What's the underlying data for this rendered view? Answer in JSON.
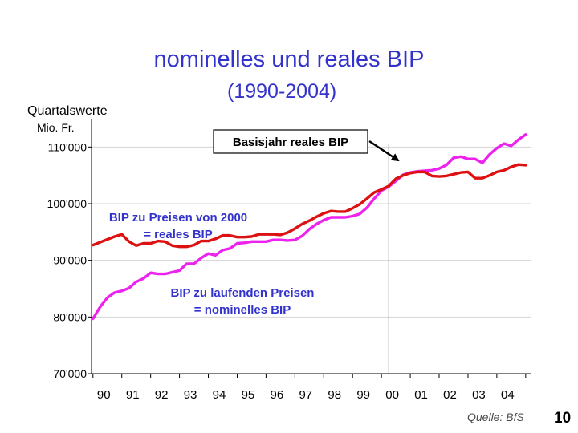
{
  "page": {
    "source": "Quelle: BfS",
    "page_number": "10"
  },
  "colors": {
    "nominal": "#ee22ee",
    "real": "#dd1111",
    "annotation": "#3333cc"
  },
  "chart_data": {
    "type": "line",
    "title": "nominelles und reales BIP",
    "subtitle": "(1990-2004)",
    "quarter_label": "Quartalswerte",
    "ylabel": "Mio. Fr.",
    "ylim": [
      70000,
      115000
    ],
    "yticks": [
      70000,
      80000,
      90000,
      100000,
      110000
    ],
    "ytick_labels": [
      "70'000",
      "80'000",
      "90'000",
      "100'000",
      "110'000"
    ],
    "xlim": [
      1989.7,
      2004.95
    ],
    "xticks": [
      1990,
      1991,
      1992,
      1993,
      1994,
      1995,
      1996,
      1997,
      1998,
      1999,
      2000,
      2001,
      2002,
      2003,
      2004
    ],
    "xtick_labels": [
      "90",
      "91",
      "92",
      "93",
      "94",
      "95",
      "96",
      "97",
      "98",
      "99",
      "00",
      "01",
      "02",
      "03",
      "04"
    ],
    "reference_line_x": 2000,
    "series": [
      {
        "name": "BIP zu laufenden Preisen = nominelles BIP",
        "key": "nominal",
        "x": [
          1989.75,
          1990,
          1990.25,
          1990.5,
          1990.75,
          1991,
          1991.25,
          1991.5,
          1991.75,
          1992,
          1992.25,
          1992.5,
          1992.75,
          1993,
          1993.25,
          1993.5,
          1993.75,
          1994,
          1994.25,
          1994.5,
          1994.75,
          1995,
          1995.25,
          1995.5,
          1995.75,
          1996,
          1996.25,
          1996.5,
          1996.75,
          1997,
          1997.25,
          1997.5,
          1997.75,
          1998,
          1998.25,
          1998.5,
          1998.75,
          1999,
          1999.25,
          1999.5,
          1999.75,
          2000,
          2000.25,
          2000.5,
          2000.75,
          2001,
          2001.25,
          2001.5,
          2001.75,
          2002,
          2002.25,
          2002.5,
          2002.75,
          2003,
          2003.25,
          2003.5,
          2003.75,
          2004,
          2004.25,
          2004.5,
          2004.75
        ],
        "values": [
          79700,
          81800,
          83400,
          84300,
          84600,
          85100,
          86200,
          86800,
          87800,
          87600,
          87600,
          87900,
          88200,
          89400,
          89400,
          90400,
          91200,
          90900,
          91800,
          92100,
          93000,
          93100,
          93300,
          93300,
          93300,
          93600,
          93600,
          93500,
          93600,
          94300,
          95500,
          96400,
          97100,
          97600,
          97600,
          97600,
          97800,
          98200,
          99300,
          100900,
          102300,
          103000,
          104000,
          105100,
          105500,
          105700,
          105800,
          105900,
          106200,
          106800,
          108100,
          108300,
          107900,
          107900,
          107200,
          108700,
          109800,
          110600,
          110200,
          111300,
          112200
        ]
      },
      {
        "name": "BIP zu Preisen von 2000 = reales BIP",
        "key": "real",
        "x": [
          1989.75,
          1990,
          1990.25,
          1990.5,
          1990.75,
          1991,
          1991.25,
          1991.5,
          1991.75,
          1992,
          1992.25,
          1992.5,
          1992.75,
          1993,
          1993.25,
          1993.5,
          1993.75,
          1994,
          1994.25,
          1994.5,
          1994.75,
          1995,
          1995.25,
          1995.5,
          1995.75,
          1996,
          1996.25,
          1996.5,
          1996.75,
          1997,
          1997.25,
          1997.5,
          1997.75,
          1998,
          1998.25,
          1998.5,
          1998.75,
          1999,
          1999.25,
          1999.5,
          1999.75,
          2000,
          2000.25,
          2000.5,
          2000.75,
          2001,
          2001.25,
          2001.5,
          2001.75,
          2002,
          2002.25,
          2002.5,
          2002.75,
          2003,
          2003.25,
          2003.5,
          2003.75,
          2004,
          2004.25,
          2004.5,
          2004.75
        ],
        "values": [
          92700,
          93200,
          93700,
          94200,
          94600,
          93300,
          92600,
          93000,
          93000,
          93400,
          93300,
          92600,
          92400,
          92400,
          92700,
          93400,
          93400,
          93800,
          94400,
          94400,
          94100,
          94100,
          94200,
          94600,
          94600,
          94600,
          94500,
          94900,
          95600,
          96400,
          97000,
          97700,
          98300,
          98700,
          98600,
          98600,
          99200,
          99900,
          100900,
          102000,
          102500,
          103100,
          104400,
          105000,
          105400,
          105600,
          105600,
          104900,
          104800,
          104900,
          105200,
          105500,
          105600,
          104500,
          104500,
          105000,
          105600,
          105900,
          106500,
          106900,
          106800
        ]
      }
    ],
    "annotations": {
      "base_year": "Basisjahr reales BIP",
      "real_line1": "BIP zu Preisen von 2000",
      "real_line2": "= reales BIP",
      "nominal_line1": "BIP zu laufenden Preisen",
      "nominal_line2": "= nominelles BIP"
    }
  }
}
